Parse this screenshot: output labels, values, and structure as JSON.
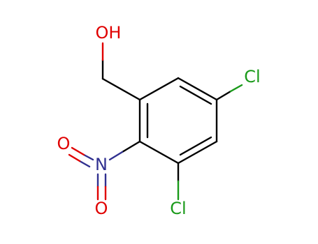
{
  "atoms": [
    {
      "label": "OH"
    },
    {
      "label": "Cl"
    },
    {
      "label": "Cl"
    },
    {
      "label": "N"
    },
    {
      "label": "O"
    },
    {
      "label": "O"
    }
  ]
}
